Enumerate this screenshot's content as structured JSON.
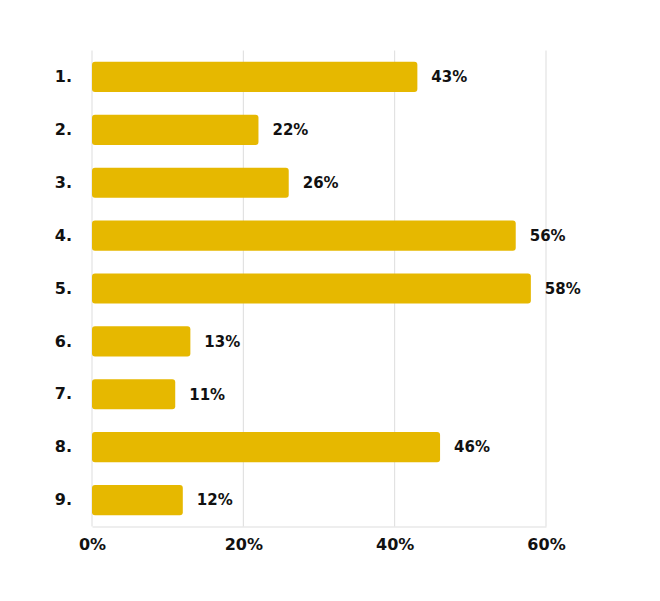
{
  "chart_data": {
    "type": "bar",
    "orientation": "horizontal",
    "categories": [
      "1.",
      "2.",
      "3.",
      "4.",
      "5.",
      "6.",
      "7.",
      "8.",
      "9."
    ],
    "values": [
      43,
      22,
      26,
      56,
      58,
      13,
      11,
      46,
      12
    ],
    "value_labels": [
      "43%",
      "22%",
      "26%",
      "56%",
      "58%",
      "13%",
      "11%",
      "46%",
      "12%"
    ],
    "color": "#e6b800",
    "xlim": [
      0,
      60
    ],
    "xticks": [
      {
        "value": 0,
        "label": "0%"
      },
      {
        "value": 20,
        "label": "20%"
      },
      {
        "value": 40,
        "label": "40%"
      },
      {
        "value": 60,
        "label": "60%"
      }
    ],
    "grid": true,
    "data_labels": true
  }
}
